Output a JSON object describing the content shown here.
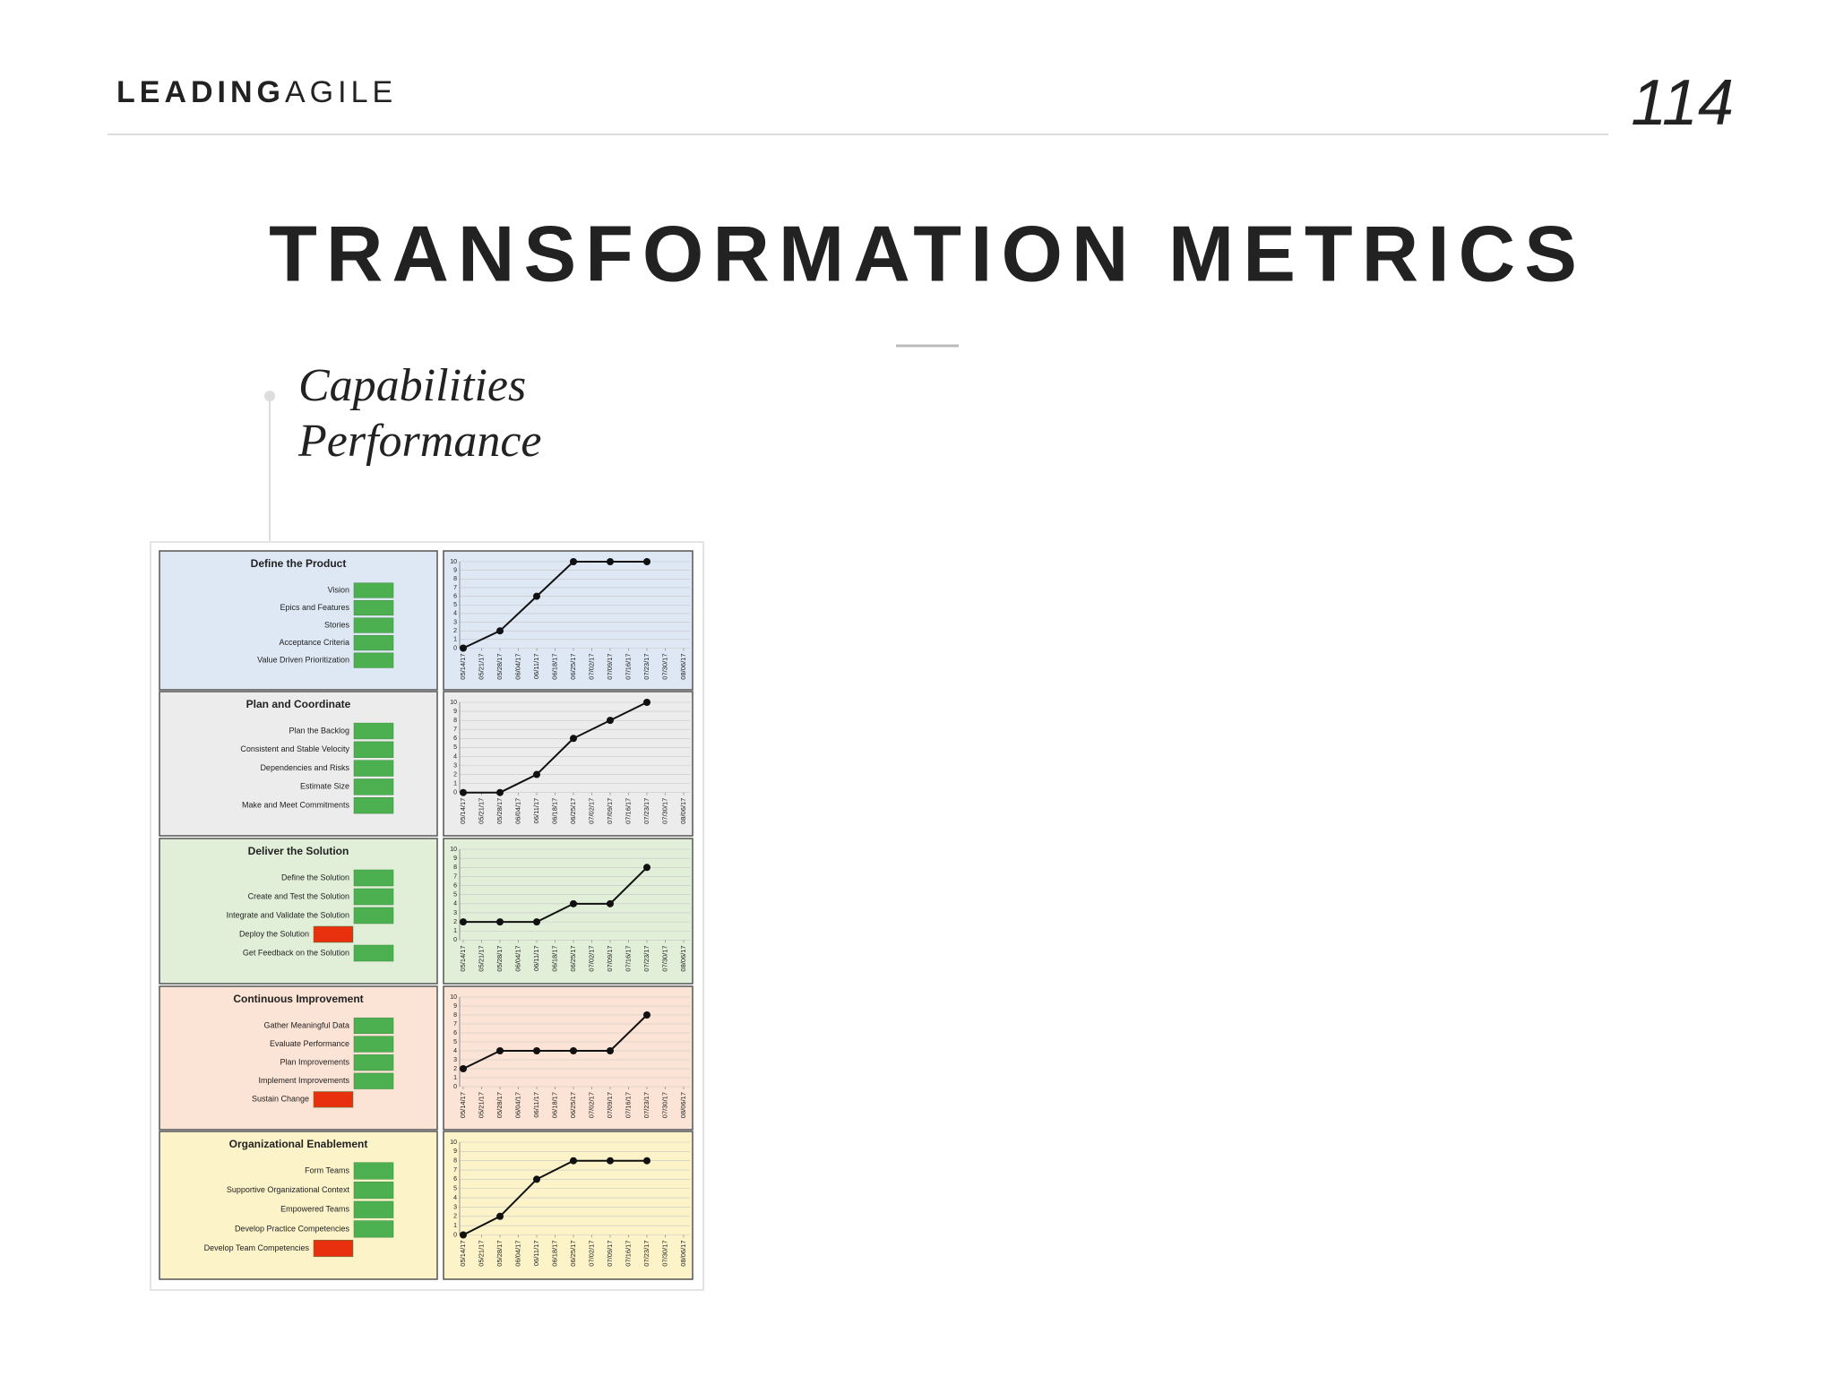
{
  "header": {
    "logo": {
      "bold": "LEADING",
      "light": "AGILE"
    },
    "page_number": "114"
  },
  "title": "TRANSFORMATION METRICS",
  "bullets": [
    "Capabilities",
    "Performance"
  ],
  "panels": [
    {
      "title": "Define the Product",
      "background": "#dde8f4",
      "items": [
        {
          "label": "Vision",
          "color": "#4caf50"
        },
        {
          "label": "Epics and Features",
          "color": "#4caf50"
        },
        {
          "label": "Stories",
          "color": "#4caf50"
        },
        {
          "label": "Acceptance Criteria",
          "color": "#4caf50"
        },
        {
          "label": "Value Driven Prioritization",
          "color": "#4caf50"
        }
      ]
    },
    {
      "title": "Plan and Coordinate",
      "background": "#ececec",
      "items": [
        {
          "label": "Plan the Backlog",
          "color": "#4caf50"
        },
        {
          "label": "Consistent and Stable Velocity",
          "color": "#4caf50"
        },
        {
          "label": "Dependencies and Risks",
          "color": "#4caf50"
        },
        {
          "label": "Estimate Size",
          "color": "#4caf50"
        },
        {
          "label": "Make and Meet Commitments",
          "color": "#4caf50"
        }
      ]
    },
    {
      "title": "Deliver the Solution",
      "background": "#e1efd9",
      "items": [
        {
          "label": "Define the Solution",
          "color": "#4caf50"
        },
        {
          "label": "Create and Test the Solution",
          "color": "#4caf50"
        },
        {
          "label": "Integrate and Validate the Solution",
          "color": "#4caf50"
        },
        {
          "label": "Deploy the Solution",
          "color": "#e8300e"
        },
        {
          "label": "Get Feedback on the Solution",
          "color": "#4caf50"
        }
      ]
    },
    {
      "title": "Continuous Improvement",
      "background": "#fbe3d5",
      "items": [
        {
          "label": "Gather Meaningful Data",
          "color": "#4caf50"
        },
        {
          "label": "Evaluate Performance",
          "color": "#4caf50"
        },
        {
          "label": "Plan Improvements",
          "color": "#4caf50"
        },
        {
          "label": "Implement Improvements",
          "color": "#4caf50"
        },
        {
          "label": "Sustain Change",
          "color": "#e8300e"
        }
      ]
    },
    {
      "title": "Organizational Enablement",
      "background": "#fcf3c9",
      "items": [
        {
          "label": "Form Teams",
          "color": "#4caf50"
        },
        {
          "label": "Supportive Organizational Context",
          "color": "#4caf50"
        },
        {
          "label": "Empowered Teams",
          "color": "#4caf50"
        },
        {
          "label": "Develop Practice Competencies",
          "color": "#4caf50"
        },
        {
          "label": "Develop Team Competencies",
          "color": "#e8300e"
        }
      ]
    }
  ],
  "chart_data": [
    {
      "type": "line",
      "background": "#dde8f4",
      "color": "#111",
      "grid": true,
      "xticks": [
        "05/14/17",
        "05/21/17",
        "05/28/17",
        "06/04/17",
        "06/11/17",
        "06/18/17",
        "06/25/17",
        "07/02/17",
        "07/09/17",
        "07/16/17",
        "07/23/17",
        "07/30/17",
        "08/06/17"
      ],
      "x": [
        "05/14/17",
        "05/28/17",
        "06/11/17",
        "06/25/17",
        "07/09/17",
        "07/23/17"
      ],
      "values": [
        0,
        2,
        6,
        10,
        10,
        10
      ],
      "ylim": [
        0,
        10
      ],
      "yticks": [
        0,
        1,
        2,
        3,
        4,
        5,
        6,
        7,
        8,
        9,
        10
      ]
    },
    {
      "type": "line",
      "background": "#ececec",
      "color": "#111",
      "grid": true,
      "xticks": [
        "05/14/17",
        "05/21/17",
        "05/28/17",
        "06/04/17",
        "06/11/17",
        "06/18/17",
        "06/25/17",
        "07/02/17",
        "07/09/17",
        "07/16/17",
        "07/23/17",
        "07/30/17",
        "08/06/17"
      ],
      "x": [
        "05/14/17",
        "05/28/17",
        "06/11/17",
        "06/25/17",
        "07/09/17",
        "07/23/17"
      ],
      "values": [
        0,
        0,
        2,
        6,
        8,
        10
      ],
      "ylim": [
        0,
        10
      ],
      "yticks": [
        0,
        1,
        2,
        3,
        4,
        5,
        6,
        7,
        8,
        9,
        10
      ]
    },
    {
      "type": "line",
      "background": "#e1efd9",
      "color": "#111",
      "grid": true,
      "xticks": [
        "05/14/17",
        "05/21/17",
        "05/28/17",
        "06/04/17",
        "06/11/17",
        "06/18/17",
        "06/25/17",
        "07/02/17",
        "07/09/17",
        "07/16/17",
        "07/23/17",
        "07/30/17",
        "08/06/17"
      ],
      "x": [
        "05/14/17",
        "05/28/17",
        "06/11/17",
        "06/25/17",
        "07/09/17",
        "07/23/17"
      ],
      "values": [
        2,
        2,
        2,
        4,
        4,
        8
      ],
      "ylim": [
        0,
        10
      ],
      "yticks": [
        0,
        1,
        2,
        3,
        4,
        5,
        6,
        7,
        8,
        9,
        10
      ]
    },
    {
      "type": "line",
      "background": "#fbe3d5",
      "color": "#111",
      "grid": true,
      "xticks": [
        "05/14/17",
        "05/21/17",
        "05/28/17",
        "06/04/17",
        "06/11/17",
        "06/18/17",
        "06/25/17",
        "07/02/17",
        "07/09/17",
        "07/16/17",
        "07/23/17",
        "07/30/17",
        "08/06/17"
      ],
      "x": [
        "05/14/17",
        "05/28/17",
        "06/11/17",
        "06/25/17",
        "07/09/17",
        "07/23/17"
      ],
      "values": [
        2,
        4,
        4,
        4,
        4,
        8
      ],
      "ylim": [
        0,
        10
      ],
      "yticks": [
        0,
        1,
        2,
        3,
        4,
        5,
        6,
        7,
        8,
        9,
        10
      ]
    },
    {
      "type": "line",
      "background": "#fcf3c9",
      "color": "#111",
      "grid": true,
      "xticks": [
        "05/14/17",
        "05/21/17",
        "05/28/17",
        "06/04/17",
        "06/11/17",
        "06/18/17",
        "06/25/17",
        "07/02/17",
        "07/09/17",
        "07/16/17",
        "07/23/17",
        "07/30/17",
        "08/06/17"
      ],
      "x": [
        "05/14/17",
        "05/28/17",
        "06/11/17",
        "06/25/17",
        "07/09/17",
        "07/23/17"
      ],
      "values": [
        0,
        2,
        6,
        8,
        8,
        8
      ],
      "ylim": [
        0,
        10
      ],
      "yticks": [
        0,
        1,
        2,
        3,
        4,
        5,
        6,
        7,
        8,
        9,
        10
      ]
    }
  ]
}
